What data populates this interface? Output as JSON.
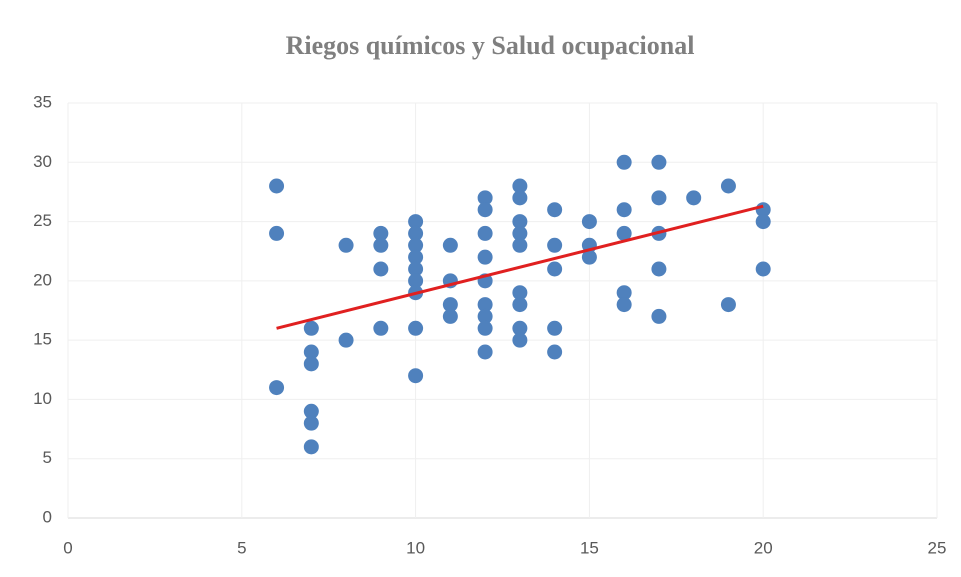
{
  "chart_data": {
    "type": "scatter",
    "title": "Riegos químicos y Salud ocupacional",
    "x": [
      6,
      6,
      6,
      7,
      7,
      7,
      7,
      7,
      7,
      8,
      8,
      9,
      9,
      9,
      9,
      10,
      10,
      10,
      10,
      10,
      10,
      10,
      10,
      10,
      11,
      11,
      11,
      11,
      12,
      12,
      12,
      12,
      12,
      12,
      12,
      12,
      12,
      13,
      13,
      13,
      13,
      13,
      13,
      13,
      13,
      13,
      14,
      14,
      14,
      14,
      14,
      15,
      15,
      15,
      16,
      16,
      16,
      16,
      16,
      17,
      17,
      17,
      17,
      17,
      18,
      19,
      19,
      20,
      20,
      20
    ],
    "values": [
      28,
      24,
      11,
      16,
      14,
      13,
      9,
      8,
      6,
      23,
      15,
      24,
      23,
      21,
      16,
      25,
      24,
      23,
      22,
      21,
      20,
      19,
      16,
      12,
      23,
      20,
      18,
      17,
      27,
      26,
      24,
      22,
      20,
      18,
      17,
      16,
      14,
      28,
      27,
      25,
      24,
      23,
      19,
      18,
      16,
      15,
      26,
      23,
      21,
      16,
      14,
      25,
      23,
      22,
      30,
      26,
      24,
      19,
      18,
      30,
      27,
      24,
      21,
      17,
      27,
      28,
      18,
      26,
      25,
      21
    ],
    "color": "#4f81bd",
    "trendline": {
      "x": [
        6,
        20
      ],
      "y": [
        16,
        26.3
      ],
      "color": "#e02020"
    },
    "xlim": [
      0,
      25
    ],
    "xticks": [
      0,
      5,
      10,
      15,
      20,
      25
    ],
    "ylim": [
      0,
      35
    ],
    "yticks": [
      0,
      5,
      10,
      15,
      20,
      25,
      30,
      35
    ],
    "grid": true
  }
}
